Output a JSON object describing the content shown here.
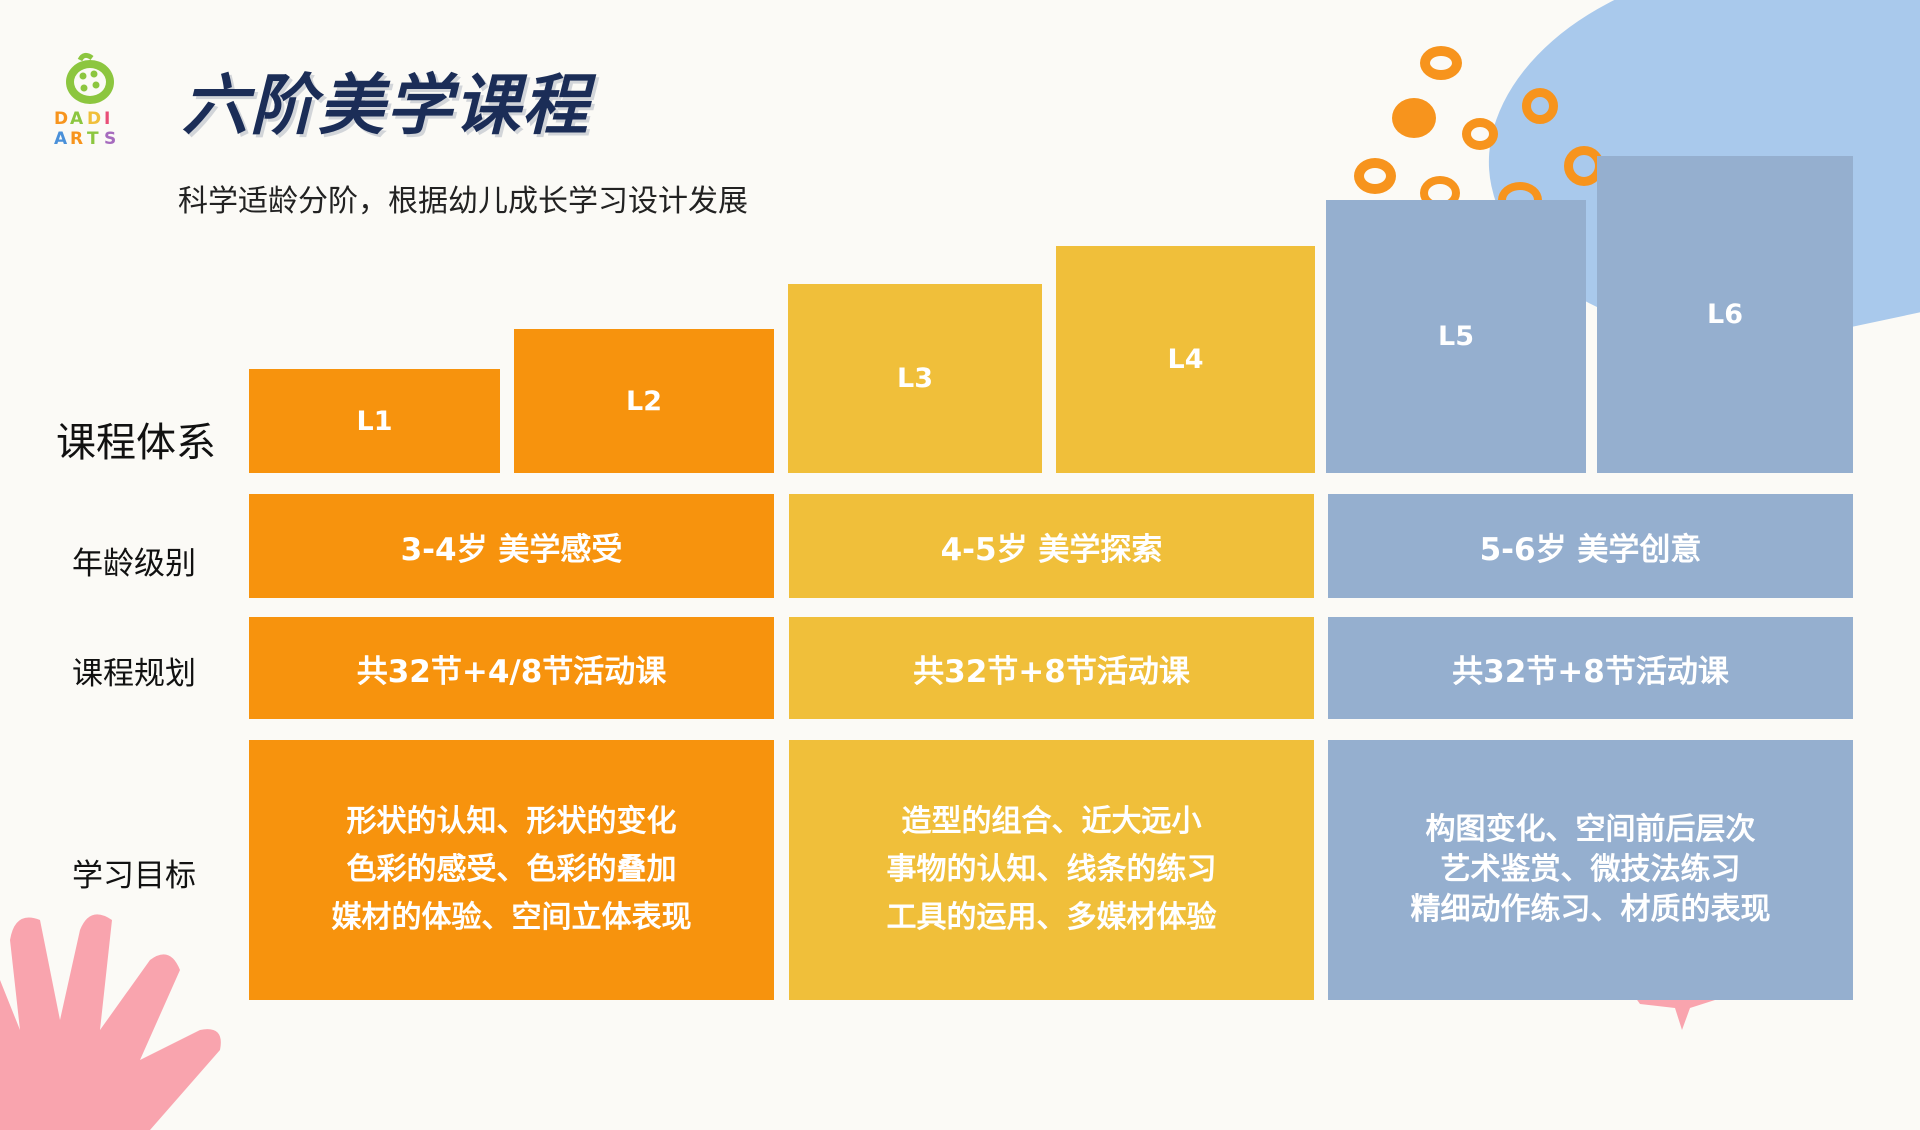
{
  "header": {
    "title": "六阶美学课程",
    "subtitle": "科学适龄分阶，根据幼儿成长学习设计发展",
    "logo_text_1": "DADI",
    "logo_text_2": "ARTS"
  },
  "row_labels": {
    "system": "课程体系",
    "age": "年龄级别",
    "plan": "课程规划",
    "goal": "学习目标"
  },
  "levels": [
    "L1",
    "L2",
    "L3",
    "L4",
    "L5",
    "L6"
  ],
  "age_bands": [
    "3-4岁 美学感受",
    "4-5岁 美学探索",
    "5-6岁 美学创意"
  ],
  "plans": [
    "共32节+4/8节活动课",
    "共32节+8节活动课",
    "共32节+8节活动课"
  ],
  "goals": [
    [
      "形状的认知、形状的变化",
      "色彩的感受、色彩的叠加",
      "媒材的体验、空间立体表现"
    ],
    [
      "造型的组合、近大远小",
      "事物的认知、线条的练习",
      "工具的运用、多媒材体验"
    ],
    [
      "构图变化、空间前后层次",
      "艺术鉴赏、微技法练习",
      "精细动作练习、材质的表现"
    ]
  ],
  "colors": {
    "orange": "#f7930d",
    "yellow": "#f0bf3a",
    "blue": "#95afcf",
    "title": "#1b2d57"
  }
}
